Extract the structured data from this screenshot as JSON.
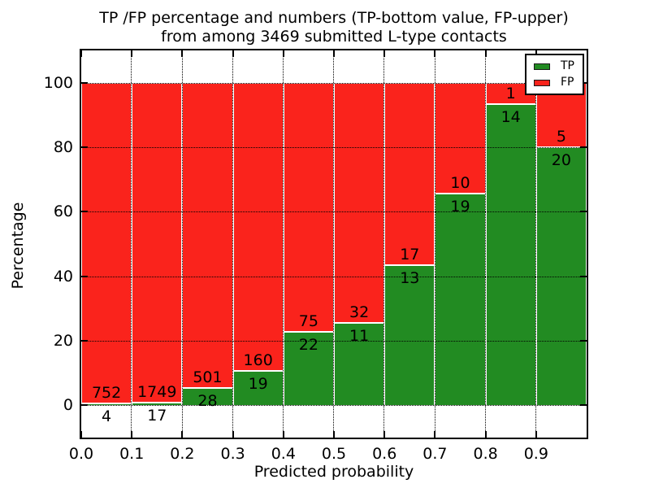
{
  "title": {
    "line1": "TP /FP percentage and numbers (TP-bottom value, FP-upper)",
    "line2": "from among 3469 submitted L-type contacts"
  },
  "chart_data": {
    "type": "bar",
    "stacked": true,
    "title": "TP /FP percentage and numbers (TP-bottom value, FP-upper) from among 3469 submitted L-type contacts",
    "xlabel": "Predicted probability",
    "ylabel": "Percentage",
    "xlim": [
      0.0,
      1.0
    ],
    "ylim": [
      -10,
      110
    ],
    "bar_total_percent": 100,
    "bin_edges": [
      0.0,
      0.1,
      0.2,
      0.3,
      0.4,
      0.5,
      0.6,
      0.7,
      0.8,
      0.9,
      1.0
    ],
    "xtick_values": [
      0.0,
      0.1,
      0.2,
      0.3,
      0.4,
      0.5,
      0.6,
      0.7,
      0.8,
      0.9
    ],
    "xtick_labels": [
      "0.0",
      "0.1",
      "0.2",
      "0.3",
      "0.4",
      "0.5",
      "0.6",
      "0.7",
      "0.8",
      "0.9"
    ],
    "ytick_values": [
      0,
      20,
      40,
      60,
      80,
      100
    ],
    "ytick_labels": [
      "0",
      "20",
      "40",
      "60",
      "80",
      "100"
    ],
    "xgrid_values": [
      0.1,
      0.2,
      0.3,
      0.4,
      0.5,
      0.6,
      0.7,
      0.8,
      0.9
    ],
    "series": [
      {
        "name": "TP",
        "color": "#228b22",
        "counts": [
          4,
          17,
          28,
          19,
          22,
          11,
          13,
          19,
          14,
          20
        ]
      },
      {
        "name": "FP",
        "color": "#fa231c",
        "counts": [
          752,
          1749,
          501,
          160,
          75,
          32,
          17,
          10,
          1,
          5
        ]
      }
    ],
    "tp_percentages": [
      0.53,
      0.96,
      5.29,
      10.61,
      22.68,
      25.58,
      43.33,
      65.52,
      93.33,
      80.0
    ],
    "total_contacts": 3469,
    "grid": "dotted",
    "legend_position": "upper right"
  },
  "legend": {
    "items": [
      {
        "label": "TP",
        "color": "#228b22"
      },
      {
        "label": "FP",
        "color": "#fa231c"
      }
    ]
  }
}
